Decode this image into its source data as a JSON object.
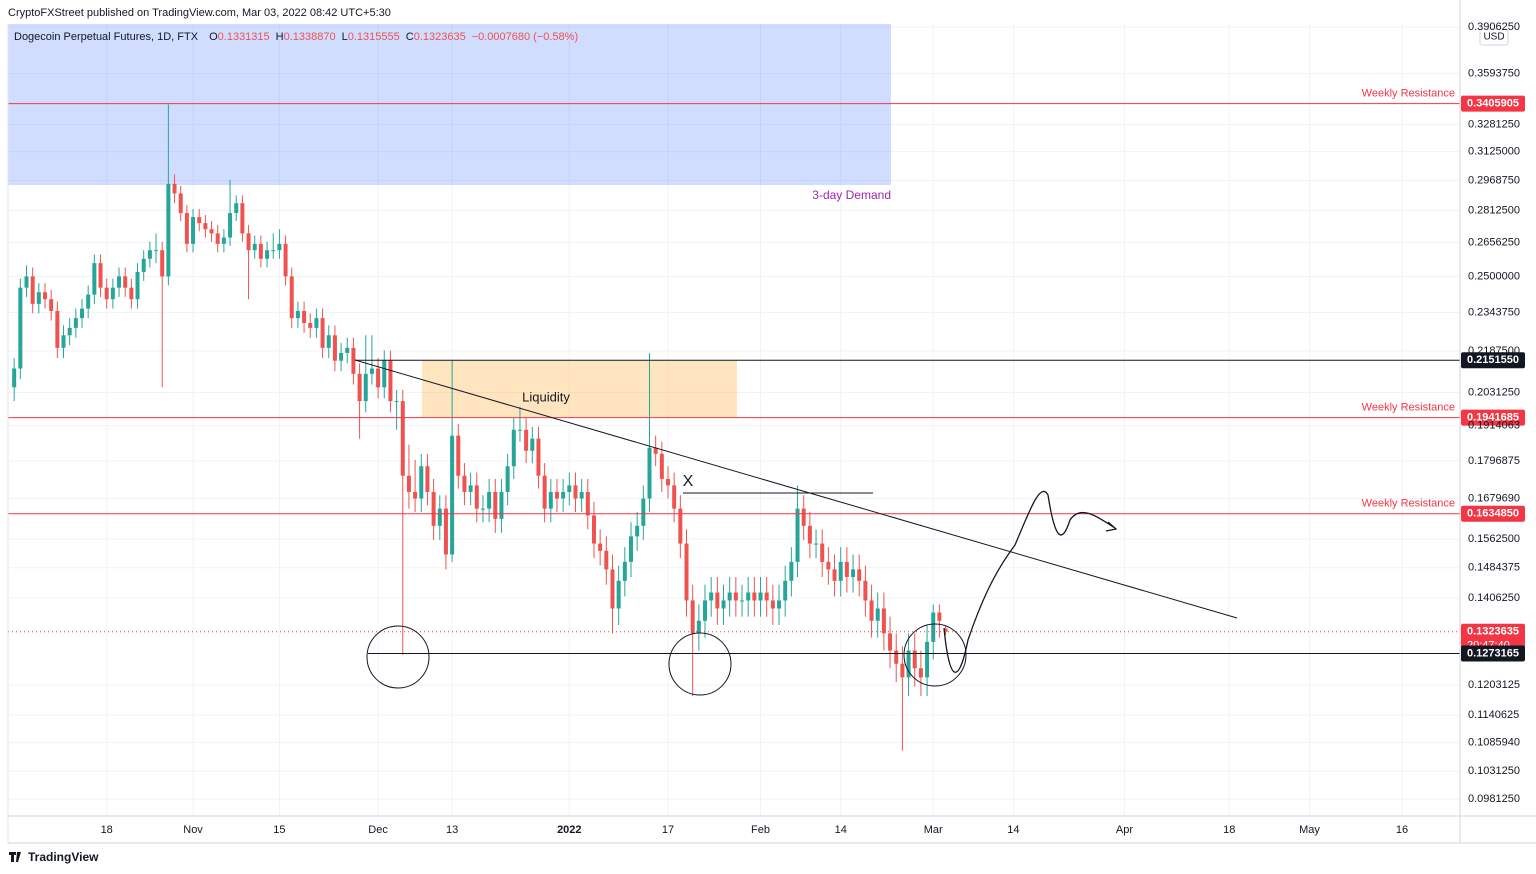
{
  "published": "CryptoFXStreet published on TradingView.com, Mar 03, 2022 08:42 UTC+5:30",
  "header": {
    "symbol": "Dogecoin Perpetual Futures, 1D, FTX",
    "fields": [
      {
        "key": "O",
        "value": "0.1331315"
      },
      {
        "key": "H",
        "value": "0.1338870"
      },
      {
        "key": "L",
        "value": "0.1315555"
      },
      {
        "key": "C",
        "value": "0.1323635"
      }
    ],
    "change": "−0.0007680 (−0.58%)"
  },
  "currency": "USD",
  "brand": "TradingView",
  "annotations": {
    "demand": "3-day Demand",
    "liquidity": "Liquidity",
    "mark": "X"
  },
  "chart_data": {
    "type": "candlestick",
    "log_scale": true,
    "grid": true,
    "up_color": "#26a69a",
    "down_color": "#ef5350",
    "ylim": [
      0.0952,
      0.3927
    ],
    "yticks": [
      {
        "value": 0.390625,
        "label": "0.3906250"
      },
      {
        "value": 0.359375,
        "label": "0.3593750"
      },
      {
        "value": 0.328125,
        "label": "0.3281250"
      },
      {
        "value": 0.3125,
        "label": "0.3125000"
      },
      {
        "value": 0.296875,
        "label": "0.2968750"
      },
      {
        "value": 0.28125,
        "label": "0.2812500"
      },
      {
        "value": 0.265625,
        "label": "0.2656250"
      },
      {
        "value": 0.25,
        "label": "0.2500000"
      },
      {
        "value": 0.234375,
        "label": "0.2343750"
      },
      {
        "value": 0.21875,
        "label": "0.2187500"
      },
      {
        "value": 0.203125,
        "label": "0.2031250"
      },
      0.1914063,
      0.1796875,
      {
        "value": 0.167969,
        "label": "0.1679690"
      },
      {
        "value": 0.15625,
        "label": "0.1562500"
      },
      0.1484375,
      {
        "value": 0.140625,
        "label": "0.1406250"
      },
      0.1203125,
      0.1140625,
      {
        "value": 0.108594,
        "label": "0.1085940"
      },
      {
        "value": 0.103125,
        "label": "0.1031250"
      },
      {
        "value": 0.098125,
        "label": "0.0981250"
      }
    ],
    "xlim": [
      -1,
      234.4
    ],
    "xticks": [
      {
        "value": 15,
        "label": "18"
      },
      {
        "value": 29,
        "label": "Nov"
      },
      {
        "value": 43,
        "label": "15"
      },
      {
        "value": 59,
        "label": "Dec"
      },
      {
        "value": 71,
        "label": "13"
      },
      {
        "value": 90,
        "label": "2022"
      },
      {
        "value": 106,
        "label": "17"
      },
      {
        "value": 121,
        "label": "Feb"
      },
      {
        "value": 134,
        "label": "14"
      },
      {
        "value": 149,
        "label": "Mar"
      },
      {
        "value": 162,
        "label": "14"
      },
      {
        "value": 180,
        "label": "Apr"
      },
      {
        "value": 197,
        "label": "18"
      },
      {
        "value": 210,
        "label": "May"
      },
      {
        "value": 225,
        "label": "16"
      }
    ],
    "levels": [
      {
        "price": 0.3405905,
        "name": "Weekly Resistance",
        "color": "#f23645"
      },
      {
        "price": {
          "value": 0.215155,
          "label": "0.2151550"
        },
        "color": "#131722"
      },
      {
        "price": 0.1941685,
        "name": "Weekly Resistance",
        "color": "#f23645"
      },
      {
        "price": {
          "value": 0.163485,
          "label": "0.1634850"
        },
        "name": "Weekly Resistance",
        "color": "#f23645"
      },
      {
        "price": 0.1323635,
        "countdown": "20:47:40",
        "color": "#f23645",
        "style": "dotted"
      },
      {
        "price": 0.1273165,
        "color": "#131722"
      }
    ],
    "ohlc": [
      [
        0.205,
        0.216,
        0.2,
        0.212
      ],
      [
        0.212,
        0.249,
        0.208,
        0.245
      ],
      [
        0.245,
        0.255,
        0.241,
        0.25
      ],
      [
        0.25,
        0.254,
        0.234,
        0.238
      ],
      [
        0.238,
        0.247,
        0.234,
        0.243
      ],
      [
        0.243,
        0.247,
        0.236,
        0.24
      ],
      [
        0.24,
        0.244,
        0.231,
        0.235
      ],
      [
        0.235,
        0.239,
        0.216,
        0.22
      ],
      [
        0.22,
        0.229,
        0.216,
        0.225
      ],
      [
        0.225,
        0.232,
        0.221,
        0.228
      ],
      [
        0.228,
        0.236,
        0.224,
        0.232
      ],
      [
        0.232,
        0.24,
        0.228,
        0.236
      ],
      [
        0.236,
        0.246,
        0.232,
        0.242
      ],
      [
        0.242,
        0.26,
        0.238,
        0.256
      ],
      [
        0.256,
        0.26,
        0.241,
        0.245
      ],
      [
        0.245,
        0.249,
        0.236,
        0.24
      ],
      [
        0.24,
        0.249,
        0.236,
        0.245
      ],
      [
        0.245,
        0.254,
        0.241,
        0.25
      ],
      [
        0.25,
        0.254,
        0.241,
        0.245
      ],
      [
        0.245,
        0.249,
        0.236,
        0.24
      ],
      [
        0.24,
        0.256,
        0.236,
        0.252
      ],
      [
        0.252,
        0.262,
        0.248,
        0.258
      ],
      [
        0.258,
        0.266,
        0.254,
        0.262
      ],
      [
        0.262,
        0.27,
        0.256,
        0.262
      ],
      [
        0.262,
        0.266,
        0.205,
        0.25
      ],
      [
        0.25,
        0.34,
        0.246,
        0.295
      ],
      [
        0.295,
        0.3,
        0.285,
        0.29
      ],
      [
        0.29,
        0.294,
        0.276,
        0.28
      ],
      [
        0.28,
        0.284,
        0.261,
        0.265
      ],
      [
        0.265,
        0.282,
        0.261,
        0.278
      ],
      [
        0.278,
        0.282,
        0.271,
        0.275
      ],
      [
        0.275,
        0.279,
        0.268,
        0.272
      ],
      [
        0.272,
        0.276,
        0.266,
        0.27
      ],
      [
        0.27,
        0.274,
        0.261,
        0.265
      ],
      [
        0.265,
        0.272,
        0.261,
        0.268
      ],
      [
        0.268,
        0.297,
        0.264,
        0.28
      ],
      [
        0.28,
        0.289,
        0.276,
        0.285
      ],
      [
        0.285,
        0.289,
        0.266,
        0.27
      ],
      [
        0.27,
        0.274,
        0.24,
        0.262
      ],
      [
        0.262,
        0.269,
        0.258,
        0.265
      ],
      [
        0.265,
        0.269,
        0.254,
        0.258
      ],
      [
        0.258,
        0.266,
        0.254,
        0.262
      ],
      [
        0.262,
        0.27,
        0.258,
        0.262
      ],
      [
        0.262,
        0.272,
        0.258,
        0.265
      ],
      [
        0.265,
        0.269,
        0.246,
        0.25
      ],
      [
        0.25,
        0.254,
        0.228,
        0.232
      ],
      [
        0.232,
        0.239,
        0.228,
        0.235
      ],
      [
        0.235,
        0.239,
        0.226,
        0.23
      ],
      [
        0.23,
        0.234,
        0.224,
        0.228
      ],
      [
        0.228,
        0.236,
        0.224,
        0.232
      ],
      [
        0.232,
        0.236,
        0.216,
        0.22
      ],
      [
        0.22,
        0.229,
        0.216,
        0.225
      ],
      [
        0.225,
        0.229,
        0.211,
        0.215
      ],
      [
        0.215,
        0.222,
        0.211,
        0.218
      ],
      [
        0.218,
        0.224,
        0.214,
        0.22
      ],
      [
        0.22,
        0.224,
        0.206,
        0.21
      ],
      [
        0.21,
        0.214,
        0.187,
        0.2
      ],
      [
        0.2,
        0.225,
        0.196,
        0.21
      ],
      [
        0.21,
        0.225,
        0.206,
        0.212
      ],
      [
        0.212,
        0.216,
        0.201,
        0.205
      ],
      [
        0.205,
        0.219,
        0.201,
        0.215
      ],
      [
        0.215,
        0.219,
        0.196,
        0.2
      ],
      [
        0.2,
        0.204,
        0.19,
        0.2
      ],
      [
        0.2,
        0.204,
        0.127,
        0.175
      ],
      [
        0.175,
        0.185,
        0.165,
        0.17
      ],
      [
        0.17,
        0.18,
        0.164,
        0.168
      ],
      [
        0.168,
        0.182,
        0.164,
        0.178
      ],
      [
        0.178,
        0.182,
        0.166,
        0.17
      ],
      [
        0.17,
        0.174,
        0.156,
        0.16
      ],
      [
        0.16,
        0.169,
        0.156,
        0.165
      ],
      [
        0.165,
        0.169,
        0.148,
        0.152
      ],
      [
        0.152,
        0.215,
        0.15,
        0.188
      ],
      [
        0.188,
        0.192,
        0.171,
        0.175
      ],
      [
        0.175,
        0.179,
        0.166,
        0.17
      ],
      [
        0.17,
        0.176,
        0.166,
        0.172
      ],
      [
        0.172,
        0.176,
        0.161,
        0.165
      ],
      [
        0.165,
        0.169,
        0.161,
        0.165
      ],
      [
        0.165,
        0.174,
        0.161,
        0.17
      ],
      [
        0.17,
        0.174,
        0.158,
        0.162
      ],
      [
        0.162,
        0.174,
        0.158,
        0.17
      ],
      [
        0.17,
        0.182,
        0.166,
        0.178
      ],
      [
        0.178,
        0.194,
        0.174,
        0.19
      ],
      [
        0.19,
        0.198,
        0.186,
        0.19
      ],
      [
        0.19,
        0.194,
        0.179,
        0.183
      ],
      [
        0.183,
        0.191,
        0.179,
        0.187
      ],
      [
        0.187,
        0.191,
        0.171,
        0.175
      ],
      [
        0.175,
        0.179,
        0.161,
        0.165
      ],
      [
        0.165,
        0.174,
        0.161,
        0.17
      ],
      [
        0.17,
        0.174,
        0.164,
        0.168
      ],
      [
        0.168,
        0.174,
        0.164,
        0.17
      ],
      [
        0.17,
        0.176,
        0.166,
        0.172
      ],
      [
        0.172,
        0.176,
        0.164,
        0.168
      ],
      [
        0.168,
        0.174,
        0.164,
        0.17
      ],
      [
        0.17,
        0.174,
        0.159,
        0.163
      ],
      [
        0.163,
        0.167,
        0.151,
        0.155
      ],
      [
        0.155,
        0.159,
        0.149,
        0.153
      ],
      [
        0.153,
        0.157,
        0.144,
        0.148
      ],
      [
        0.148,
        0.152,
        0.132,
        0.138
      ],
      [
        0.138,
        0.149,
        0.134,
        0.145
      ],
      [
        0.145,
        0.154,
        0.141,
        0.15
      ],
      [
        0.15,
        0.161,
        0.146,
        0.157
      ],
      [
        0.157,
        0.164,
        0.153,
        0.16
      ],
      [
        0.16,
        0.172,
        0.156,
        0.168
      ],
      [
        0.168,
        0.218,
        0.164,
        0.184
      ],
      [
        0.184,
        0.188,
        0.178,
        0.182
      ],
      [
        0.182,
        0.186,
        0.17,
        0.174
      ],
      [
        0.174,
        0.178,
        0.168,
        0.172
      ],
      [
        0.172,
        0.176,
        0.161,
        0.165
      ],
      [
        0.165,
        0.169,
        0.151,
        0.155
      ],
      [
        0.155,
        0.159,
        0.136,
        0.14
      ],
      [
        0.14,
        0.144,
        0.118,
        0.132
      ],
      [
        0.132,
        0.139,
        0.128,
        0.135
      ],
      [
        0.135,
        0.144,
        0.131,
        0.14
      ],
      [
        0.14,
        0.146,
        0.136,
        0.142
      ],
      [
        0.142,
        0.146,
        0.134,
        0.138
      ],
      [
        0.138,
        0.144,
        0.134,
        0.14
      ],
      [
        0.14,
        0.146,
        0.136,
        0.142
      ],
      [
        0.142,
        0.146,
        0.136,
        0.14
      ],
      [
        0.14,
        0.144,
        0.136,
        0.14
      ],
      [
        0.14,
        0.146,
        0.136,
        0.142
      ],
      [
        0.142,
        0.146,
        0.136,
        0.14
      ],
      [
        0.14,
        0.146,
        0.136,
        0.142
      ],
      [
        0.142,
        0.146,
        0.136,
        0.14
      ],
      [
        0.14,
        0.144,
        0.134,
        0.138
      ],
      [
        0.138,
        0.144,
        0.134,
        0.14
      ],
      [
        0.14,
        0.149,
        0.136,
        0.145
      ],
      [
        0.145,
        0.154,
        0.141,
        0.15
      ],
      [
        0.15,
        0.172,
        0.146,
        0.165
      ],
      [
        0.165,
        0.169,
        0.156,
        0.16
      ],
      [
        0.16,
        0.164,
        0.151,
        0.155
      ],
      [
        0.155,
        0.159,
        0.151,
        0.155
      ],
      [
        0.155,
        0.159,
        0.146,
        0.15
      ],
      [
        0.15,
        0.154,
        0.144,
        0.148
      ],
      [
        0.148,
        0.152,
        0.141,
        0.145
      ],
      [
        0.145,
        0.154,
        0.141,
        0.15
      ],
      [
        0.15,
        0.154,
        0.142,
        0.146
      ],
      [
        0.146,
        0.152,
        0.142,
        0.148
      ],
      [
        0.148,
        0.152,
        0.141,
        0.145
      ],
      [
        0.145,
        0.149,
        0.136,
        0.14
      ],
      [
        0.14,
        0.144,
        0.131,
        0.135
      ],
      [
        0.135,
        0.142,
        0.131,
        0.138
      ],
      [
        0.138,
        0.142,
        0.128,
        0.132
      ],
      [
        0.132,
        0.136,
        0.124,
        0.128
      ],
      [
        0.128,
        0.132,
        0.121,
        0.125
      ],
      [
        0.125,
        0.129,
        0.107,
        0.122
      ],
      [
        0.122,
        0.132,
        0.118,
        0.128
      ],
      [
        0.128,
        0.132,
        0.12,
        0.124
      ],
      [
        0.124,
        0.128,
        0.118,
        0.122
      ],
      [
        0.122,
        0.134,
        0.118,
        0.13
      ],
      [
        0.13,
        0.139,
        0.126,
        0.137
      ],
      [
        0.137,
        0.139,
        0.131,
        0.135
      ],
      [
        0.1331315,
        0.133887,
        0.1315555,
        0.1323635
      ]
    ]
  }
}
